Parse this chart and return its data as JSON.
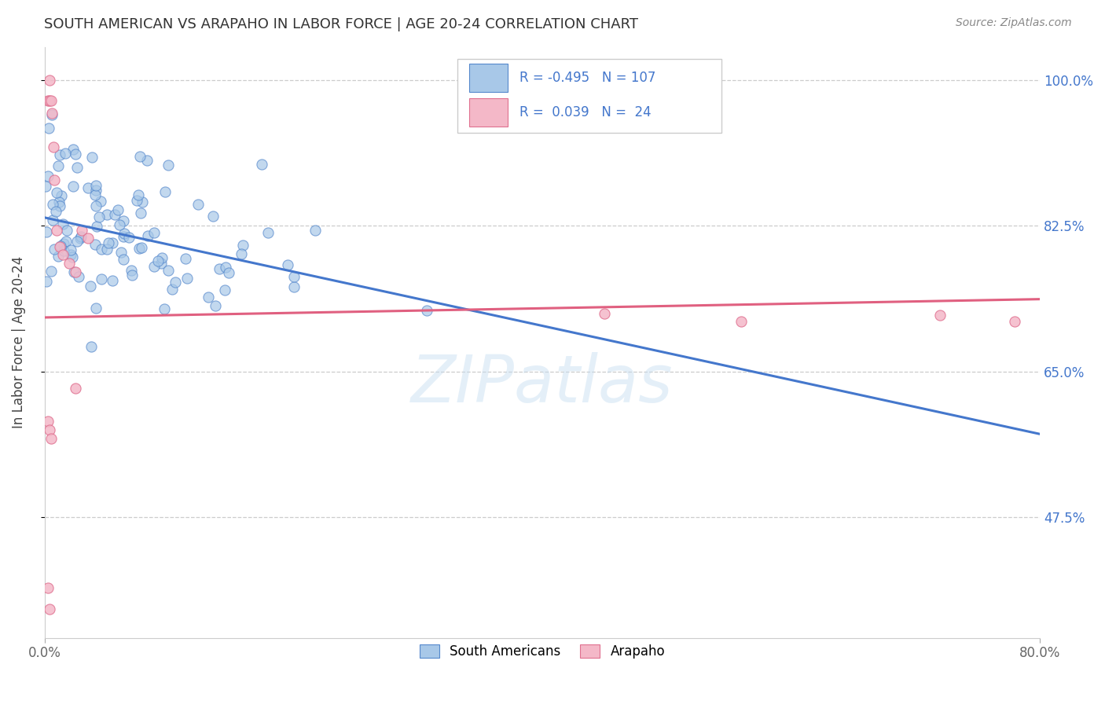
{
  "title": "SOUTH AMERICAN VS ARAPAHO IN LABOR FORCE | AGE 20-24 CORRELATION CHART",
  "source_text": "Source: ZipAtlas.com",
  "ylabel": "In Labor Force | Age 20-24",
  "xlim": [
    0.0,
    0.8
  ],
  "ylim": [
    0.33,
    1.04
  ],
  "yticks": [
    0.475,
    0.65,
    0.825,
    1.0
  ],
  "ytick_labels": [
    "47.5%",
    "65.0%",
    "82.5%",
    "100.0%"
  ],
  "blue_R": -0.495,
  "blue_N": 107,
  "pink_R": 0.039,
  "pink_N": 24,
  "blue_color": "#a8c8e8",
  "pink_color": "#f4b8c8",
  "blue_edge_color": "#5588cc",
  "pink_edge_color": "#e07090",
  "blue_line_color": "#4477cc",
  "pink_line_color": "#e06080",
  "watermark": "ZIPatlas",
  "legend_label_blue": "South Americans",
  "legend_label_pink": "Arapaho",
  "blue_line_x0": 0.0,
  "blue_line_x1": 0.8,
  "blue_line_y0": 0.835,
  "blue_line_y1": 0.575,
  "pink_line_x0": 0.0,
  "pink_line_x1": 0.8,
  "pink_line_y0": 0.715,
  "pink_line_y1": 0.737,
  "background_color": "#ffffff",
  "grid_color": "#cccccc",
  "title_color": "#333333",
  "tick_color_right": "#4477cc",
  "tick_color_bottom": "#666666"
}
